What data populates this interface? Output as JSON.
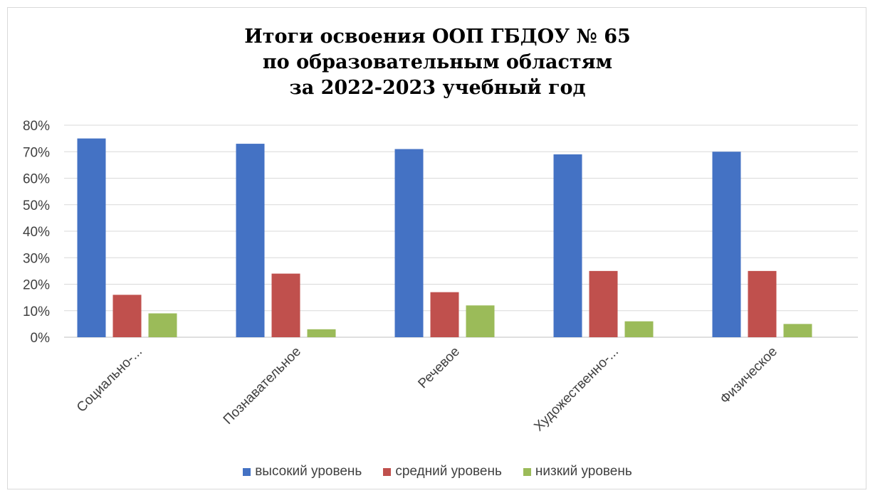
{
  "chart_data": {
    "type": "bar",
    "title": [
      "Итоги освоения ООП ГБДОУ № 65",
      "по образовательным областям",
      "за 2022-2023 учебный год"
    ],
    "categories": [
      "Социально-...",
      "Познавательное",
      "Речевое",
      "Художественно-...",
      "Физическое"
    ],
    "series": [
      {
        "name": "высокий уровень",
        "color": "#4472C4",
        "values": [
          75,
          73,
          71,
          69,
          70
        ]
      },
      {
        "name": "средний уровень",
        "color": "#C0504D",
        "values": [
          16,
          24,
          17,
          25,
          25
        ]
      },
      {
        "name": "низкий уровень",
        "color": "#9BBB59",
        "values": [
          9,
          3,
          12,
          6,
          5
        ]
      }
    ],
    "yticks": [
      "0%",
      "10%",
      "20%",
      "30%",
      "40%",
      "50%",
      "60%",
      "70%",
      "80%"
    ],
    "ylim": [
      0,
      80
    ],
    "unit": "%",
    "grid": true,
    "legend_position": "bottom"
  }
}
